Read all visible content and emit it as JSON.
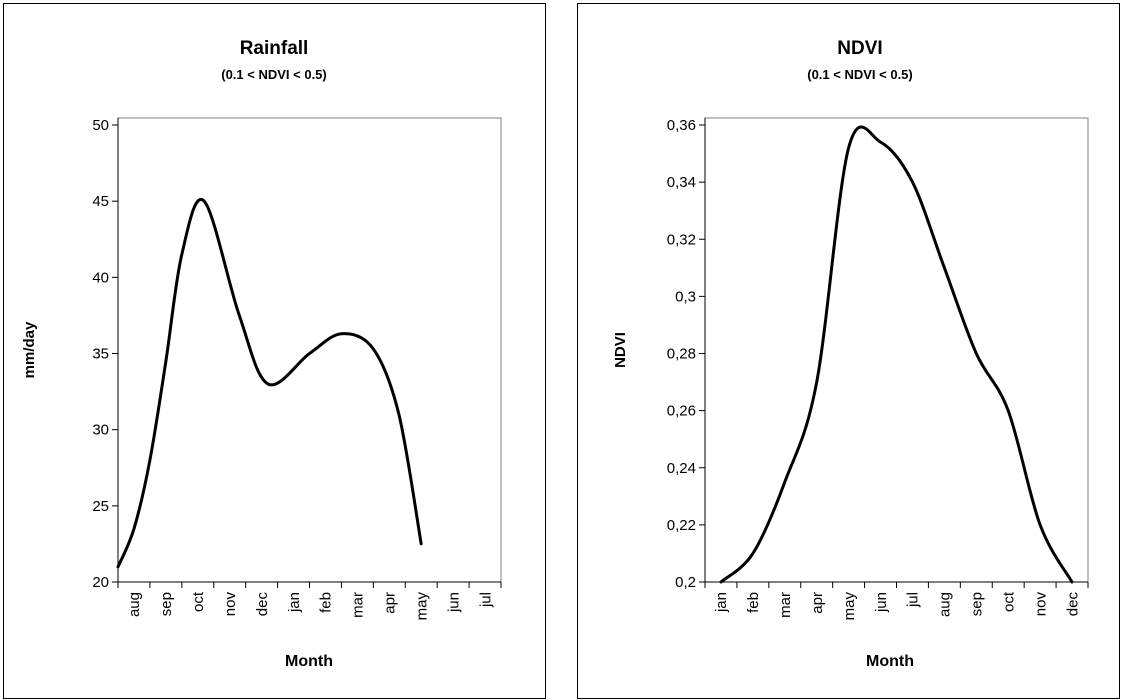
{
  "chart_data": [
    {
      "type": "line",
      "title": "Rainfall",
      "subtitle": "(0.1 < NDVI < 0.5)",
      "xlabel": "Month",
      "ylabel": "mm/day",
      "categories": [
        "aug",
        "sep",
        "oct",
        "nov",
        "dec",
        "jan",
        "feb",
        "mar",
        "apr",
        "may",
        "jun",
        "jul"
      ],
      "x": [
        0,
        1,
        2,
        3,
        4,
        5,
        6,
        7,
        8,
        9,
        10,
        11
      ],
      "series": [
        {
          "values": [
            21,
            23.5,
            28,
            34.5,
            41.5,
            45,
            37.5,
            33,
            35,
            36.3,
            35.3,
            31,
            22.5
          ],
          "x": [
            -0.5,
            0,
            0.5,
            1,
            1.5,
            2.2,
            3.3,
            4.2,
            5.5,
            6.5,
            7.5,
            8.3,
            9
          ]
        }
      ],
      "ylim": [
        20,
        50
      ],
      "yticks": [
        "20",
        "25",
        "30",
        "35",
        "40",
        "45",
        "50"
      ],
      "grid": false,
      "legend": "none",
      "line_color": "#000000"
    },
    {
      "type": "line",
      "title": "NDVI",
      "subtitle": "(0.1 < NDVI < 0.5)",
      "xlabel": "Month",
      "ylabel": "NDVI",
      "categories": [
        "jan",
        "feb",
        "mar",
        "apr",
        "may",
        "jun",
        "jul",
        "aug",
        "sep",
        "oct",
        "nov",
        "dec"
      ],
      "series": [
        {
          "values": [
            0.2,
            0.21,
            0.235,
            0.27,
            0.352,
            0.354,
            0.34,
            0.31,
            0.28,
            0.26,
            0.22,
            0.2
          ]
        }
      ],
      "ylim": [
        0.2,
        0.36
      ],
      "yticks": [
        "0,2",
        "0,22",
        "0,24",
        "0,26",
        "0,28",
        "0,3",
        "0,32",
        "0,34",
        "0,36"
      ],
      "grid": false,
      "legend": "none",
      "line_color": "#000000"
    }
  ]
}
